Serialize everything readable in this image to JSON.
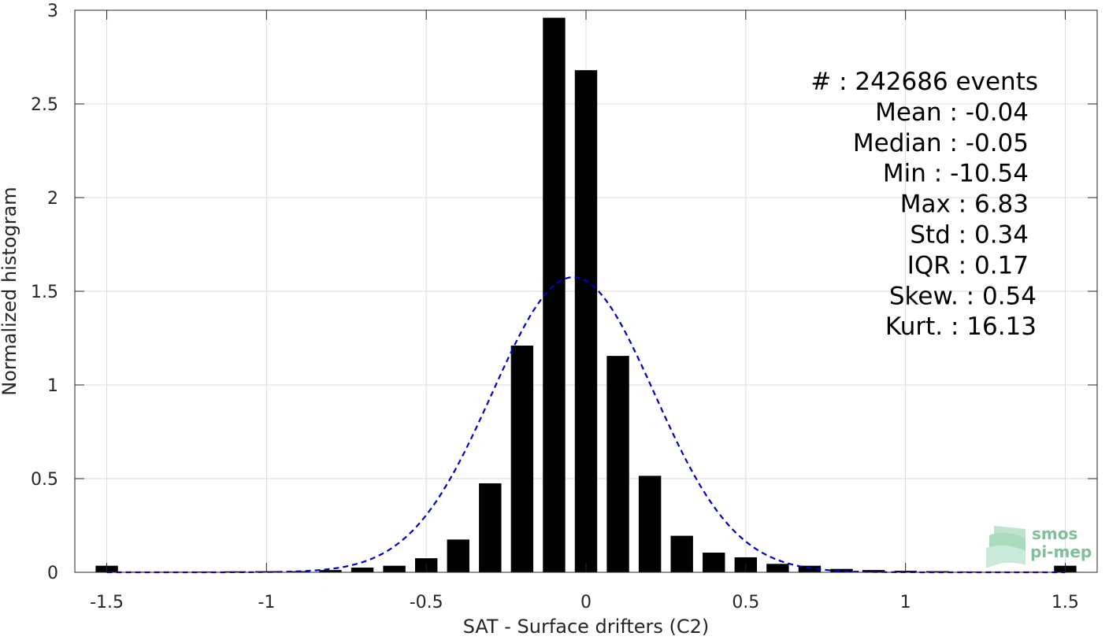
{
  "chart_data": {
    "type": "bar",
    "xlabel": "SAT - Surface drifters (C2)",
    "ylabel": "Normalized histogram",
    "xlim": [
      -1.6,
      1.6
    ],
    "ylim": [
      0,
      3
    ],
    "xticks": [
      -1.5,
      -1,
      -0.5,
      0,
      0.5,
      1,
      1.5
    ],
    "xtick_labels": [
      "-1.5",
      "-1",
      "-0.5",
      "0",
      "0.5",
      "1",
      "1.5"
    ],
    "yticks": [
      0,
      0.5,
      1,
      1.5,
      2,
      2.5,
      3
    ],
    "ytick_labels": [
      "0",
      "0.5",
      "1",
      "1.5",
      "2",
      "2.5",
      "3"
    ],
    "grid": true,
    "bar_width": 0.07,
    "bar_color": "#000000",
    "bins": [
      -1.5,
      -1.4,
      -1.3,
      -1.2,
      -1.1,
      -1.0,
      -0.9,
      -0.8,
      -0.7,
      -0.6,
      -0.5,
      -0.4,
      -0.3,
      -0.2,
      -0.1,
      0.0,
      0.1,
      0.2,
      0.3,
      0.4,
      0.5,
      0.6,
      0.7,
      0.8,
      0.9,
      1.0,
      1.1,
      1.2,
      1.3,
      1.4,
      1.5
    ],
    "values": [
      0.035,
      0.003,
      0.003,
      0.004,
      0.005,
      0.006,
      0.006,
      0.012,
      0.025,
      0.035,
      0.075,
      0.175,
      0.475,
      1.21,
      2.96,
      2.68,
      1.155,
      0.515,
      0.195,
      0.105,
      0.08,
      0.045,
      0.035,
      0.018,
      0.012,
      0.008,
      0.006,
      0.004,
      0.003,
      0.003,
      0.035
    ],
    "gaussian_fit": {
      "mean": -0.04,
      "std": 0.254,
      "peak": 1.575,
      "color": "#0000cc",
      "style": "dashed"
    },
    "annotations": [
      "#  : 242686 events",
      "Mean : -0.04",
      "Median : -0.05",
      "Min : -10.54",
      "Max : 6.83",
      "Std : 0.34",
      "IQR : 0.17",
      "Skew. : 0.54",
      "Kurt. : 16.13"
    ]
  },
  "logo": {
    "line1": "smos",
    "line2": "pi-mep"
  }
}
